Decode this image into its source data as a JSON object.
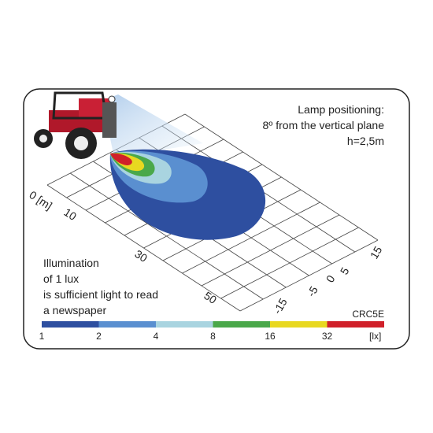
{
  "title_lines": [
    "Lamp positioning:",
    "8º from the vertical plane",
    "h=2,5m"
  ],
  "note_lines": [
    "Illumination",
    "of 1 lux",
    "is sufficient light to read",
    "a newspaper"
  ],
  "model": "CRC5E",
  "scale": {
    "labels": [
      "1",
      "2",
      "4",
      "8",
      "16",
      "32"
    ],
    "unit": "[lx]"
  },
  "axis_distance": [
    "0 [m]",
    "10",
    "30",
    "50"
  ],
  "axis_width": [
    "15",
    "5",
    "0",
    "-5",
    "-15"
  ]
}
